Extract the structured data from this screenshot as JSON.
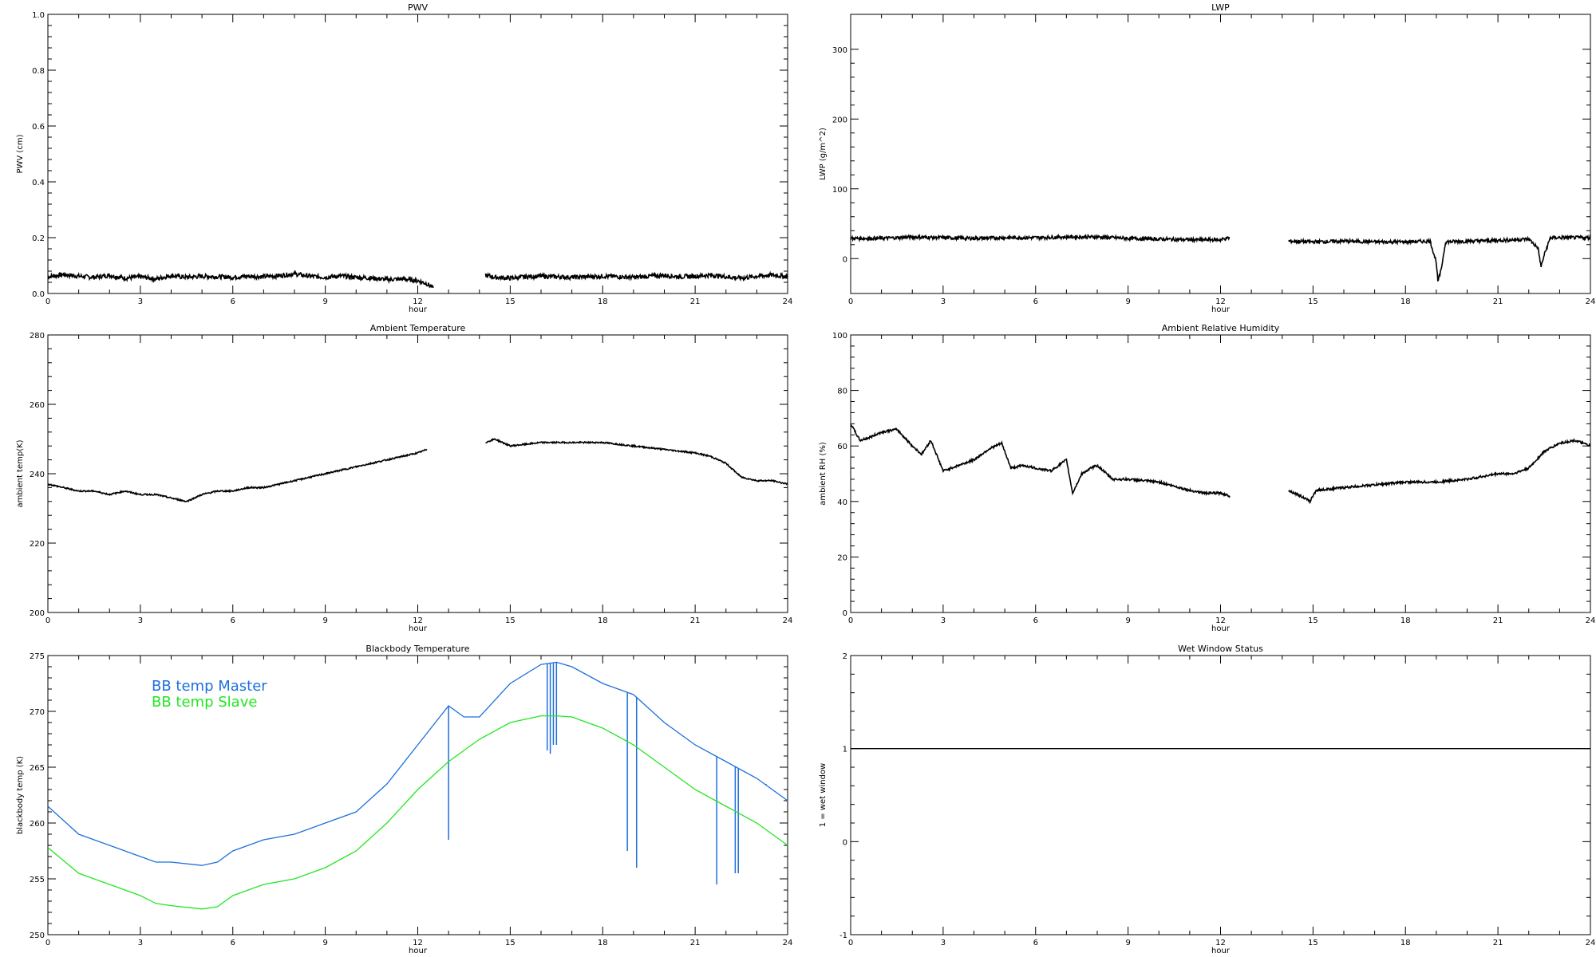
{
  "xlabel": "hour",
  "xticks": [
    0,
    3,
    6,
    9,
    12,
    15,
    18,
    21,
    24
  ],
  "chart_data": [
    {
      "id": "pwv",
      "type": "line",
      "title": "PWV",
      "ylabel": "PWV (cm)",
      "xlim": [
        0,
        24
      ],
      "ylim": [
        0,
        1
      ],
      "yticks": [
        0.0,
        0.2,
        0.4,
        0.6,
        0.8,
        1.0
      ],
      "ytick_labels": [
        "0.0",
        "0.2",
        "0.4",
        "0.6",
        "0.8",
        "1.0"
      ],
      "series": [
        {
          "color": "#000000",
          "noise": 0.008,
          "x": [
            0,
            0.5,
            1,
            1.5,
            2,
            2.5,
            3,
            3.5,
            4,
            4.5,
            5,
            5.5,
            6,
            6.5,
            7,
            7.5,
            8,
            8.5,
            9,
            9.5,
            10,
            10.5,
            11,
            11.5,
            12,
            12.3,
            12.5
          ],
          "y": [
            0.06,
            0.068,
            0.062,
            0.058,
            0.065,
            0.055,
            0.06,
            0.052,
            0.064,
            0.058,
            0.062,
            0.06,
            0.058,
            0.062,
            0.06,
            0.064,
            0.07,
            0.062,
            0.058,
            0.063,
            0.058,
            0.055,
            0.05,
            0.052,
            0.046,
            0.035,
            0.02
          ]
        },
        {
          "color": "#000000",
          "noise": 0.008,
          "x": [
            14.2,
            14.5,
            15,
            15.5,
            16,
            16.5,
            17,
            17.5,
            18,
            18.5,
            19,
            19.5,
            20,
            20.5,
            21,
            21.5,
            22,
            22.5,
            23,
            23.5,
            24
          ],
          "y": [
            0.065,
            0.058,
            0.055,
            0.06,
            0.062,
            0.06,
            0.058,
            0.06,
            0.062,
            0.06,
            0.058,
            0.062,
            0.065,
            0.06,
            0.062,
            0.066,
            0.06,
            0.055,
            0.062,
            0.066,
            0.06
          ]
        }
      ]
    },
    {
      "id": "lwp",
      "type": "line",
      "title": "LWP",
      "ylabel": "LWP (g/m^2)",
      "xlim": [
        0,
        24
      ],
      "ylim": [
        -50,
        350
      ],
      "yticks": [
        0,
        100,
        200,
        300
      ],
      "ytick_labels": [
        "0",
        "100",
        "200",
        "300"
      ],
      "series": [
        {
          "color": "#000000",
          "noise": 2.5,
          "x": [
            0,
            1,
            2,
            3,
            4,
            5,
            6,
            7,
            8,
            9,
            10,
            11,
            12,
            12.3
          ],
          "y": [
            29,
            29,
            31,
            30,
            29,
            30,
            30,
            31,
            31,
            29,
            28,
            27,
            27,
            30
          ]
        },
        {
          "color": "#000000",
          "noise": 2.5,
          "x": [
            14.2,
            15,
            16,
            17,
            18,
            18.8,
            19,
            19.05,
            19.15,
            19.3,
            20,
            21,
            22,
            22.3,
            22.4,
            22.5,
            22.7,
            23,
            24
          ],
          "y": [
            25,
            24,
            25,
            24,
            24,
            25,
            -5,
            -33,
            -18,
            24,
            25,
            26,
            28,
            15,
            -12,
            5,
            30,
            30,
            30
          ]
        }
      ]
    },
    {
      "id": "ambient-temperature",
      "type": "line",
      "title": "Ambient Temperature",
      "ylabel": "ambient temp(K)",
      "xlim": [
        0,
        24
      ],
      "ylim": [
        200,
        280
      ],
      "yticks": [
        200,
        220,
        240,
        260,
        280
      ],
      "ytick_labels": [
        "200",
        "220",
        "240",
        "260",
        "280"
      ],
      "series": [
        {
          "color": "#000000",
          "noise": 0.2,
          "x": [
            0,
            0.5,
            1,
            1.5,
            2,
            2.5,
            3,
            3.5,
            4,
            4.5,
            5,
            5.5,
            6,
            6.5,
            7,
            7.5,
            8,
            8.5,
            9,
            9.5,
            10,
            10.5,
            11,
            11.5,
            12,
            12.3
          ],
          "y": [
            237,
            236,
            235,
            235,
            234,
            235,
            234,
            234,
            233,
            232,
            234,
            235,
            235,
            236,
            236,
            237,
            238,
            239,
            240,
            241,
            242,
            243,
            244,
            245,
            246,
            247
          ]
        },
        {
          "color": "#000000",
          "noise": 0.2,
          "x": [
            14.2,
            14.5,
            15,
            16,
            17,
            18,
            19,
            20,
            21,
            21.5,
            22,
            22.5,
            23,
            23.5,
            24
          ],
          "y": [
            249,
            250,
            248,
            249,
            249,
            249,
            248,
            247,
            246,
            245,
            243,
            239,
            238,
            238,
            237
          ]
        }
      ]
    },
    {
      "id": "ambient-relative-humidity",
      "type": "line",
      "title": "Ambient Relative Humidity",
      "ylabel": "ambient RH (%)",
      "xlim": [
        0,
        24
      ],
      "ylim": [
        0,
        100
      ],
      "yticks": [
        0,
        20,
        40,
        60,
        80,
        100
      ],
      "ytick_labels": [
        "0",
        "20",
        "40",
        "60",
        "80",
        "100"
      ],
      "series": [
        {
          "color": "#000000",
          "noise": 0.4,
          "x": [
            0,
            0.3,
            0.6,
            1,
            1.5,
            2,
            2.3,
            2.6,
            3,
            3.5,
            4,
            4.5,
            4.9,
            5.2,
            5.6,
            6,
            6.5,
            7,
            7.2,
            7.5,
            7.8,
            8,
            8.5,
            9,
            10,
            11,
            11.5,
            12,
            12.3
          ],
          "y": [
            68,
            62,
            63,
            65,
            66,
            60,
            57,
            62,
            51,
            53,
            55,
            59,
            61,
            52,
            53,
            52,
            51,
            55,
            43,
            50,
            52,
            53,
            48,
            48,
            47,
            44,
            43,
            43,
            42
          ]
        },
        {
          "color": "#000000",
          "noise": 0.4,
          "x": [
            14.2,
            14.6,
            14.9,
            15.1,
            16,
            17,
            18,
            19,
            20,
            21,
            21.5,
            22,
            22.5,
            23,
            23.5,
            24
          ],
          "y": [
            44,
            42,
            40,
            44,
            45,
            46,
            47,
            47,
            48,
            50,
            50,
            52,
            58,
            61,
            62,
            60
          ]
        }
      ]
    },
    {
      "id": "blackbody-temperature",
      "type": "line",
      "title": "Blackbody Temperature",
      "ylabel": "blackbody temp (K)",
      "xlim": [
        0,
        24
      ],
      "ylim": [
        250,
        275
      ],
      "yticks": [
        250,
        255,
        260,
        265,
        270,
        275
      ],
      "ytick_labels": [
        "250",
        "255",
        "260",
        "265",
        "270",
        "275"
      ],
      "legend": "top-left",
      "series": [
        {
          "name": "BB temp Master",
          "color": "#1e6fdc",
          "noise": 0,
          "x": [
            0,
            1,
            2,
            3,
            3.5,
            4,
            5,
            5.5,
            6,
            7,
            8,
            9,
            10,
            11,
            12,
            13,
            13.5,
            14,
            15,
            16,
            16.5,
            17,
            18,
            19,
            20,
            21,
            22,
            23,
            24
          ],
          "y": [
            261.5,
            259,
            258,
            257,
            256.5,
            256.5,
            256.2,
            256.5,
            257.5,
            258.5,
            259,
            260,
            261,
            263.5,
            267,
            270.5,
            269.5,
            269.5,
            272.5,
            274.2,
            274.4,
            274,
            272.5,
            271.5,
            269,
            267,
            265.5,
            264,
            262
          ],
          "spikes": [
            [
              13,
              258.5
            ],
            [
              16.2,
              266.5
            ],
            [
              16.3,
              266.2
            ],
            [
              16.4,
              267
            ],
            [
              16.5,
              267
            ],
            [
              18.8,
              257.5
            ],
            [
              19.1,
              256
            ],
            [
              21.7,
              254.5
            ],
            [
              22.3,
              255.5
            ],
            [
              22.4,
              255.5
            ],
            [
              23.3,
              263.5
            ]
          ]
        },
        {
          "name": "BB temp Slave",
          "color": "#22e622",
          "noise": 0,
          "x": [
            0,
            1,
            2,
            3,
            3.5,
            4,
            5,
            5.5,
            6,
            7,
            8,
            9,
            10,
            11,
            12,
            13,
            14,
            15,
            16,
            16.5,
            17,
            18,
            19,
            20,
            21,
            22,
            23,
            24
          ],
          "y": [
            257.8,
            255.5,
            254.5,
            253.5,
            252.8,
            252.6,
            252.3,
            252.5,
            253.5,
            254.5,
            255,
            256,
            257.5,
            260,
            263,
            265.5,
            267.5,
            269,
            269.6,
            269.6,
            269.5,
            268.5,
            267,
            265,
            263,
            261.5,
            260,
            258
          ]
        }
      ]
    },
    {
      "id": "wet-window-status",
      "type": "line",
      "title": "Wet Window Status",
      "ylabel": "1 = wet window",
      "xlim": [
        0,
        24
      ],
      "ylim": [
        -1,
        2
      ],
      "yticks": [
        -1,
        0,
        1,
        2
      ],
      "ytick_labels": [
        "-1",
        "0",
        "1",
        "2"
      ],
      "series": [
        {
          "color": "#000000",
          "noise": 0,
          "x": [
            0,
            24
          ],
          "y": [
            1,
            1
          ]
        }
      ]
    }
  ]
}
